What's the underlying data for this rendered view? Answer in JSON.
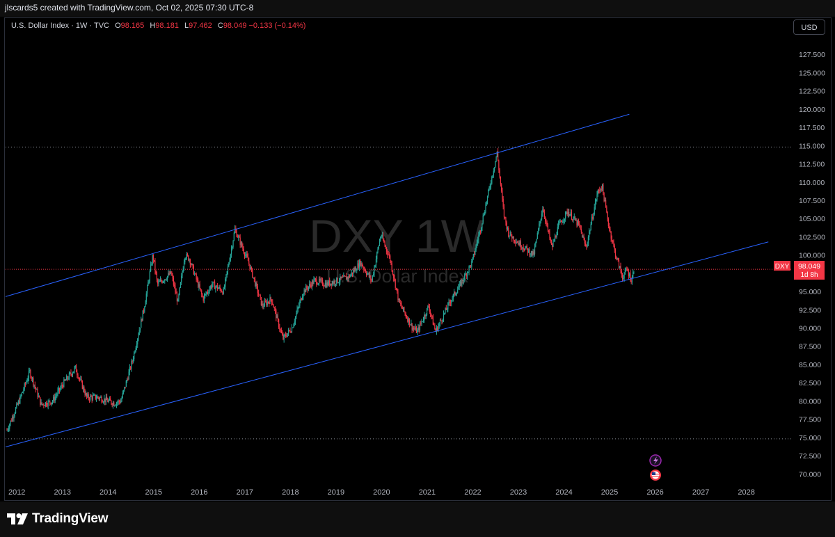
{
  "header": {
    "caption": "jlscards5 created with TradingView.com, Oct 02, 2025 07:30 UTC-8"
  },
  "legend": {
    "symbol": "U.S. Dollar Index · 1W · TVC",
    "o_label": "O",
    "o_value": "98.165",
    "h_label": "H",
    "h_value": "98.181",
    "l_label": "L",
    "l_value": "97.462",
    "c_label": "C",
    "c_value": "98.049 −0.133 (−0.14%)"
  },
  "currency_button": "USD",
  "watermark": {
    "ticker": "DXY 1W",
    "name": "U.S. Dollar Index"
  },
  "price_tag": {
    "symbol": "DXY",
    "price": "98.049",
    "countdown": "1d 8h"
  },
  "footer": {
    "brand": "TradingView"
  },
  "colors": {
    "up": "#26a69a",
    "down": "#f23645",
    "trendline": "#2962ff",
    "background": "#000000"
  },
  "icons": [
    "lightning-event-icon",
    "us-flag-event-icon"
  ],
  "chart_data": {
    "type": "candlestick",
    "title": "U.S. Dollar Index",
    "timeframe": "1W",
    "x_ticks": [
      "2012",
      "2013",
      "2014",
      "2015",
      "2016",
      "2017",
      "2018",
      "2019",
      "2020",
      "2021",
      "2022",
      "2023",
      "2024",
      "2025",
      "2026",
      "2027",
      "2028"
    ],
    "y_ticks": [
      "70.000",
      "72.500",
      "75.000",
      "77.500",
      "80.000",
      "82.500",
      "85.000",
      "87.500",
      "90.000",
      "92.500",
      "95.000",
      "97.500",
      "100.000",
      "102.500",
      "105.000",
      "107.500",
      "110.000",
      "112.500",
      "115.000",
      "117.500",
      "120.000",
      "122.500",
      "125.000",
      "127.500"
    ],
    "y_range": [
      68.5,
      130.0
    ],
    "x_range": [
      2011.97,
      2029.2
    ],
    "price_path": [
      [
        2012.0,
        76.0
      ],
      [
        2012.3,
        80.5
      ],
      [
        2012.5,
        84.0
      ],
      [
        2012.75,
        79.5
      ],
      [
        2013.0,
        80.0
      ],
      [
        2013.25,
        82.5
      ],
      [
        2013.5,
        84.5
      ],
      [
        2013.75,
        80.5
      ],
      [
        2014.0,
        80.5
      ],
      [
        2014.35,
        79.7
      ],
      [
        2014.5,
        80.0
      ],
      [
        2014.75,
        85.5
      ],
      [
        2015.0,
        92.5
      ],
      [
        2015.2,
        100.0
      ],
      [
        2015.3,
        96.0
      ],
      [
        2015.6,
        97.5
      ],
      [
        2015.75,
        93.5
      ],
      [
        2015.9,
        100.0
      ],
      [
        2016.0,
        99.5
      ],
      [
        2016.3,
        94.0
      ],
      [
        2016.5,
        96.0
      ],
      [
        2016.75,
        95.0
      ],
      [
        2017.0,
        103.5
      ],
      [
        2017.3,
        99.0
      ],
      [
        2017.6,
        93.0
      ],
      [
        2017.8,
        94.0
      ],
      [
        2018.05,
        88.5
      ],
      [
        2018.25,
        90.0
      ],
      [
        2018.5,
        95.0
      ],
      [
        2018.75,
        96.5
      ],
      [
        2019.0,
        96.0
      ],
      [
        2019.5,
        97.0
      ],
      [
        2019.75,
        99.0
      ],
      [
        2020.0,
        96.5
      ],
      [
        2020.2,
        102.8
      ],
      [
        2020.4,
        99.5
      ],
      [
        2020.6,
        93.5
      ],
      [
        2020.9,
        90.0
      ],
      [
        2021.0,
        89.5
      ],
      [
        2021.25,
        93.0
      ],
      [
        2021.4,
        89.5
      ],
      [
        2021.75,
        94.0
      ],
      [
        2021.95,
        96.0
      ],
      [
        2022.2,
        99.0
      ],
      [
        2022.4,
        104.0
      ],
      [
        2022.75,
        114.0
      ],
      [
        2022.9,
        105.5
      ],
      [
        2023.0,
        103.0
      ],
      [
        2023.25,
        101.5
      ],
      [
        2023.55,
        100.0
      ],
      [
        2023.75,
        106.5
      ],
      [
        2023.95,
        101.0
      ],
      [
        2024.1,
        104.0
      ],
      [
        2024.3,
        106.0
      ],
      [
        2024.55,
        104.0
      ],
      [
        2024.7,
        101.0
      ],
      [
        2024.95,
        108.5
      ],
      [
        2025.05,
        109.5
      ],
      [
        2025.2,
        104.0
      ],
      [
        2025.35,
        100.0
      ],
      [
        2025.5,
        97.0
      ],
      [
        2025.6,
        98.0
      ],
      [
        2025.7,
        96.5
      ],
      [
        2025.75,
        98.05
      ]
    ],
    "trendlines": [
      {
        "name": "upper-channel",
        "from": [
          2011.97,
          94.3
        ],
        "to": [
          2025.65,
          119.3
        ]
      },
      {
        "name": "lower-channel",
        "from": [
          2011.97,
          73.7
        ],
        "to": [
          2028.7,
          101.8
        ]
      }
    ],
    "horizontal_lines": [
      {
        "name": "resistance-dotted",
        "value": 114.8
      },
      {
        "name": "support-dotted",
        "value": 74.8
      },
      {
        "name": "last-price",
        "value": 98.049
      }
    ],
    "last_price": 98.049,
    "grid": false
  }
}
